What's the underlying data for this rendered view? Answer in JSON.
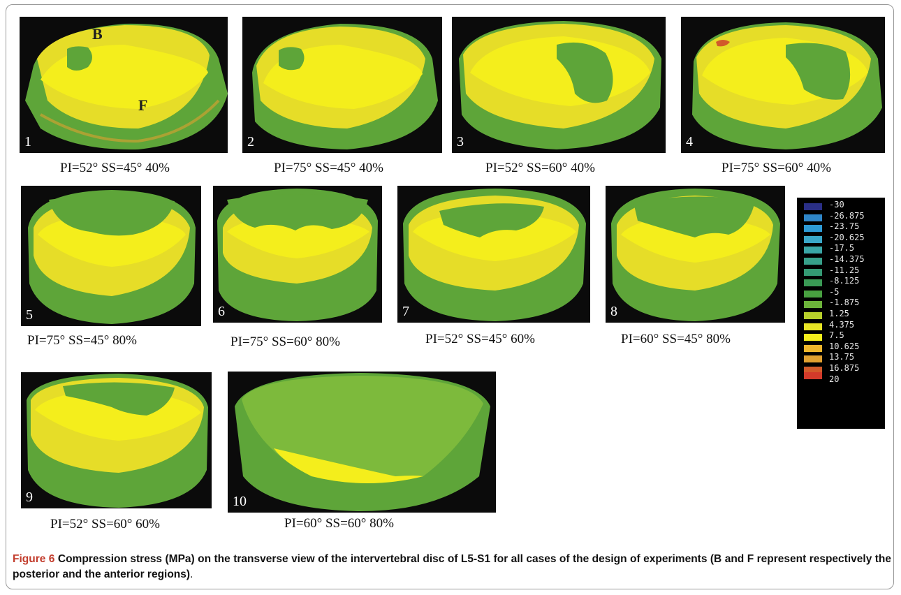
{
  "figure": {
    "label": "Figure 6",
    "caption_text": "Compression stress (MPa) on the transverse view of the intervertebral disc of L5-S1 for all cases of the design of experiments (B and F represent respectively the posterior and the anterior regions)",
    "caption_end": "."
  },
  "markers": {
    "posterior": "B",
    "anterior": "F"
  },
  "panels": [
    {
      "number": "1",
      "caption": "PI=52° SS=45° 40%"
    },
    {
      "number": "2",
      "caption": "PI=75° SS=45° 40%"
    },
    {
      "number": "3",
      "caption": "PI=52° SS=60° 40%"
    },
    {
      "number": "4",
      "caption": "PI=75° SS=60° 40%"
    },
    {
      "number": "5",
      "caption": "PI=75° SS=45° 80%"
    },
    {
      "number": "6",
      "caption": "PI=75° SS=60° 80%"
    },
    {
      "number": "7",
      "caption": "PI=52° SS=45° 60%"
    },
    {
      "number": "8",
      "caption": "PI=60° SS=45° 80%"
    },
    {
      "number": "9",
      "caption": "PI=52° SS=60° 60%"
    },
    {
      "number": "10",
      "caption": "PI=60° SS=60° 80%"
    }
  ],
  "legend": {
    "labels": [
      "-30",
      "-26.875",
      "-23.75",
      "-20.625",
      "-17.5",
      "-14.375",
      "-11.25",
      "-8.125",
      "-5",
      "-1.875",
      "1.25",
      "4.375",
      "7.5",
      "10.625",
      "13.75",
      "16.875",
      "20"
    ],
    "colors": [
      "#2a2f86",
      "#2f86c8",
      "#2e9bd6",
      "#3aa7c8",
      "#3aa6a6",
      "#37a08a",
      "#349a74",
      "#3a9a55",
      "#48a040",
      "#6cb33a",
      "#b7cf2b",
      "#e7e425",
      "#f4ee1c",
      "#eeb62c",
      "#e0a030",
      "#d15a2a",
      "#d23a2a"
    ]
  }
}
